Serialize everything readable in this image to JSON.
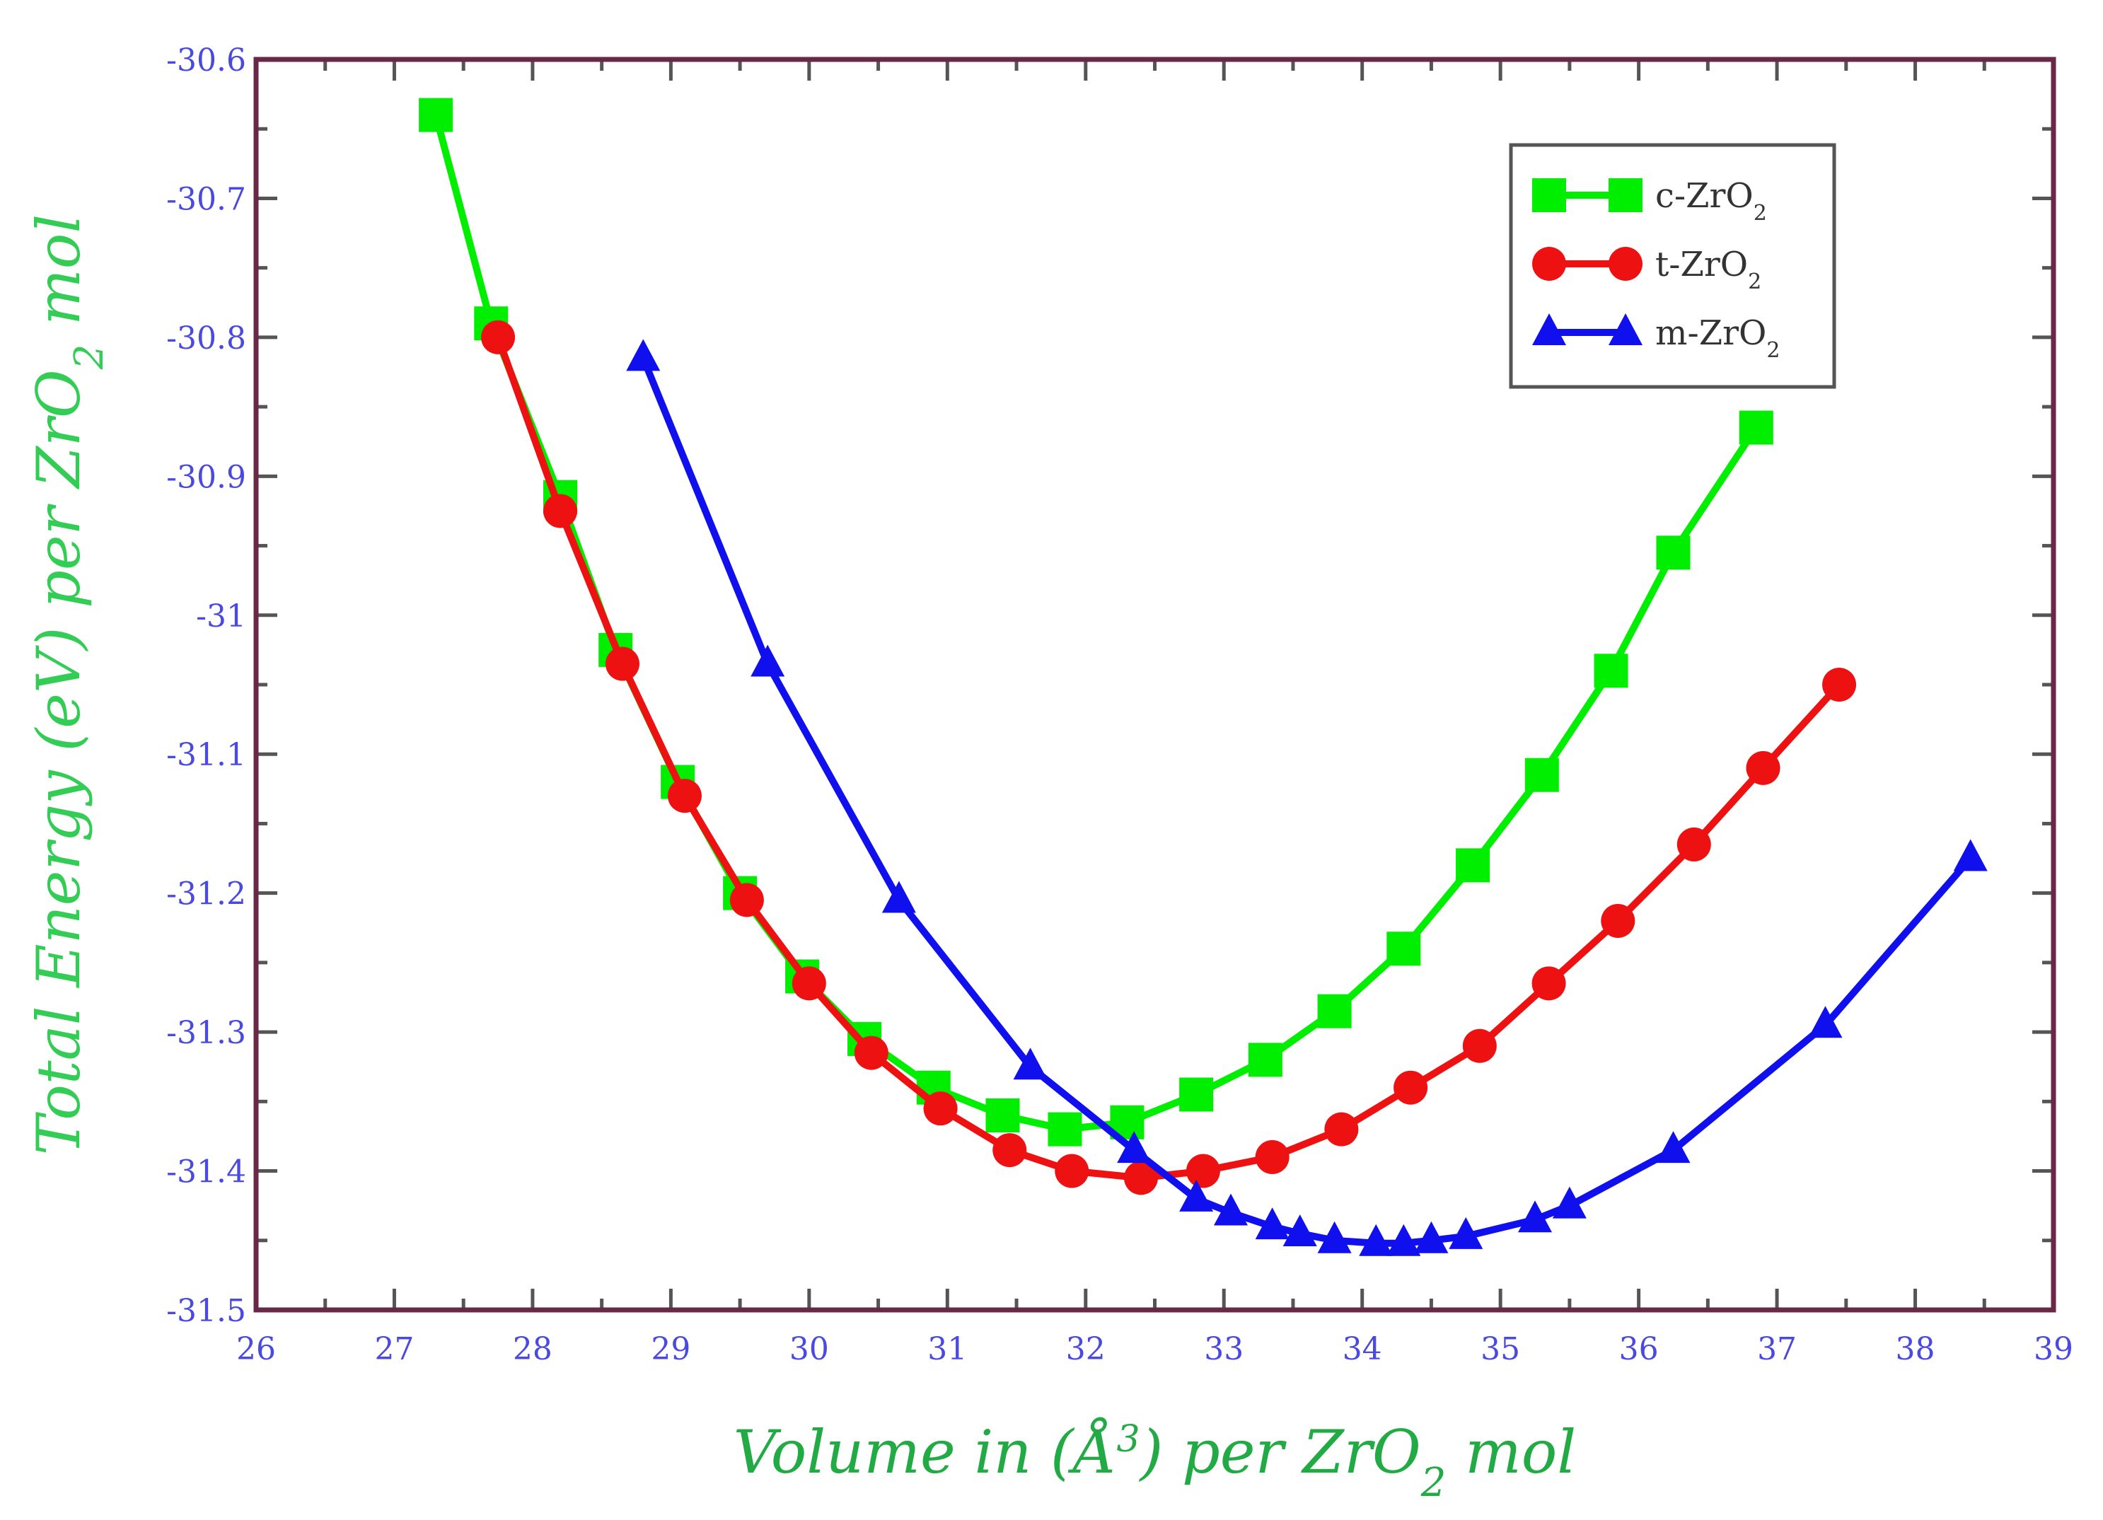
{
  "chart_data": {
    "type": "line",
    "title": "",
    "xlabel": {
      "prefix": "Volume in (Å",
      "sup": "3",
      "mid": ") per ZrO",
      "sub": "2",
      "suffix": " mol"
    },
    "ylabel": {
      "prefix": "Total Energy (eV) per ZrO",
      "sub": "2",
      "suffix": " mol"
    },
    "xlim": [
      26,
      39
    ],
    "ylim": [
      -31.5,
      -30.6
    ],
    "x_ticks": [
      "26",
      "27",
      "28",
      "29",
      "30",
      "31",
      "32",
      "33",
      "34",
      "35",
      "36",
      "37",
      "38",
      "39"
    ],
    "y_ticks": [
      "-30.6",
      "-30.7",
      "-30.8",
      "-30.9",
      "-31",
      "-31.1",
      "-31.2",
      "-31.3",
      "-31.4",
      "-31.5"
    ],
    "legend_position": "top-right",
    "series": [
      {
        "name": "c-ZrO",
        "name_sub": "2",
        "color": "#00ee00",
        "marker": "square",
        "x": [
          27.3,
          27.7,
          28.2,
          28.6,
          29.05,
          29.5,
          29.95,
          30.4,
          30.9,
          31.4,
          31.85,
          32.3,
          32.8,
          33.3,
          33.8,
          34.3,
          34.8,
          35.3,
          35.8,
          36.25,
          36.85
        ],
        "y": [
          -30.64,
          -30.79,
          -30.915,
          -31.025,
          -31.12,
          -31.2,
          -31.26,
          -31.305,
          -31.34,
          -31.36,
          -31.37,
          -31.365,
          -31.345,
          -31.32,
          -31.285,
          -31.24,
          -31.18,
          -31.115,
          -31.04,
          -30.955,
          -30.865
        ]
      },
      {
        "name": "t-ZrO",
        "name_sub": "2",
        "color": "#ee1111",
        "marker": "circle",
        "x": [
          27.75,
          28.2,
          28.65,
          29.1,
          29.55,
          30.0,
          30.45,
          30.95,
          31.45,
          31.9,
          32.4,
          32.85,
          33.35,
          33.85,
          34.35,
          34.85,
          35.35,
          35.85,
          36.4,
          36.9,
          37.45
        ],
        "y": [
          -30.8,
          -30.925,
          -31.035,
          -31.13,
          -31.205,
          -31.265,
          -31.315,
          -31.355,
          -31.385,
          -31.4,
          -31.405,
          -31.4,
          -31.39,
          -31.37,
          -31.34,
          -31.31,
          -31.265,
          -31.22,
          -31.165,
          -31.11,
          -31.05
        ]
      },
      {
        "name": "m-ZrO",
        "name_sub": "2",
        "color": "#1010ee",
        "marker": "triangle",
        "x": [
          28.8,
          29.7,
          30.65,
          31.6,
          32.35,
          32.8,
          33.05,
          33.35,
          33.55,
          33.8,
          34.1,
          34.3,
          34.5,
          34.75,
          35.25,
          35.5,
          36.25,
          37.35,
          38.4
        ],
        "y": [
          -30.815,
          -31.035,
          -31.205,
          -31.325,
          -31.385,
          -31.42,
          -31.43,
          -31.44,
          -31.445,
          -31.45,
          -31.452,
          -31.452,
          -31.45,
          -31.447,
          -31.435,
          -31.425,
          -31.385,
          -31.295,
          -31.175
        ]
      }
    ]
  },
  "colors": {
    "frame": "#6a2848",
    "tick_label": "#4a4ae0",
    "x_title": "#22aa44",
    "y_title": "#33cc55",
    "legend_border": "#555555"
  }
}
